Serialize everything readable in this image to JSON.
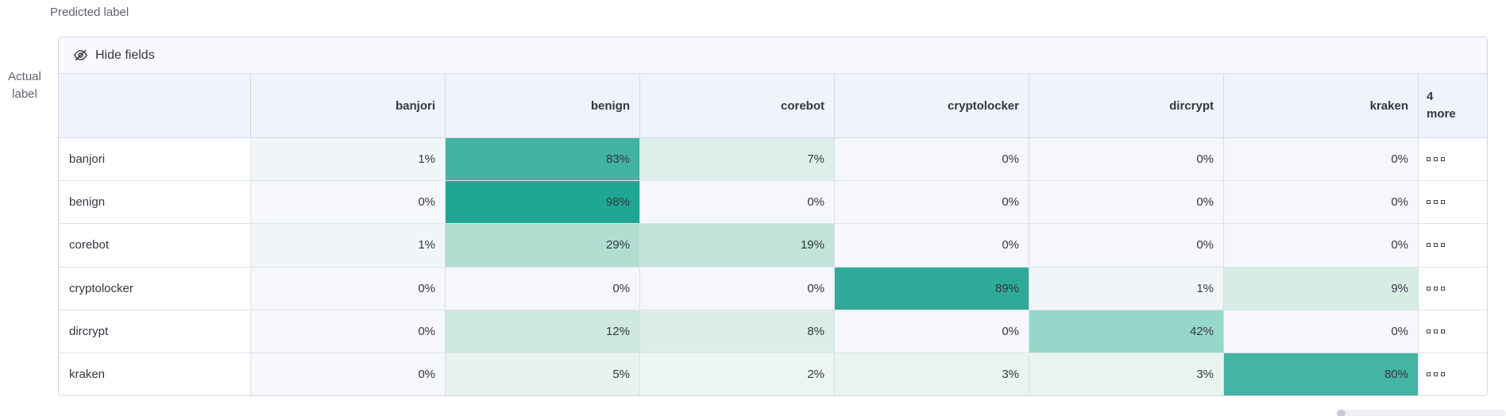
{
  "axes": {
    "predicted_label": "Predicted label",
    "actual_label_line1": "Actual",
    "actual_label_line2": "label"
  },
  "toolbar": {
    "hide_fields_label": "Hide fields",
    "hide_fields_icon": "eye-closed-icon"
  },
  "grid": {
    "columns": [
      "banjori",
      "benign",
      "corebot",
      "cryptolocker",
      "dircrypt",
      "kraken"
    ],
    "more_column": {
      "count": "4",
      "word": "more",
      "cell_icon": "boxes-horizontal-icon"
    },
    "rows": [
      {
        "label": "banjori",
        "values": [
          "1%",
          "83%",
          "7%",
          "0%",
          "0%",
          "0%"
        ]
      },
      {
        "label": "benign",
        "values": [
          "0%",
          "98%",
          "0%",
          "0%",
          "0%",
          "0%"
        ]
      },
      {
        "label": "corebot",
        "values": [
          "1%",
          "29%",
          "19%",
          "0%",
          "0%",
          "0%"
        ]
      },
      {
        "label": "cryptolocker",
        "values": [
          "0%",
          "0%",
          "0%",
          "89%",
          "1%",
          "9%"
        ]
      },
      {
        "label": "dircrypt",
        "values": [
          "0%",
          "12%",
          "8%",
          "0%",
          "42%",
          "0%"
        ]
      },
      {
        "label": "kraken",
        "values": [
          "0%",
          "5%",
          "2%",
          "3%",
          "3%",
          "80%"
        ]
      }
    ]
  },
  "colors": {
    "accent": "#20a694",
    "heat_scale": {
      "0%": "#f5f7fa",
      "1%": "#f0f6f7",
      "2%": "#edf5f3",
      "3%": "#e9f4f0",
      "5%": "#e6f3ee",
      "7%": "#ddefe8",
      "8%": "#daeee6",
      "9%": "#d7ede4",
      "12%": "#cfe9de",
      "19%": "#c2e4d8",
      "29%": "#b0ddcf",
      "42%": "#97d6ca",
      "80%": "#44b4a3",
      "83%": "#41b3a2",
      "89%": "#2faa98",
      "98%": "#20a694"
    }
  }
}
